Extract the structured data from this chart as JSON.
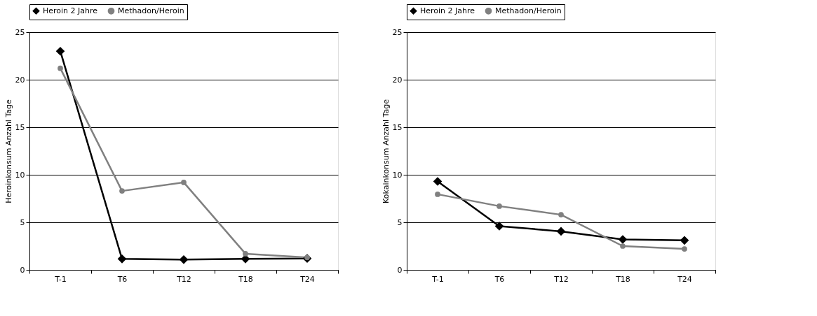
{
  "chart_data": [
    {
      "type": "line",
      "ylabel": "Heroinkonsum Anzahl Tage",
      "categories": [
        "T-1",
        "T6",
        "T12",
        "T18",
        "T24"
      ],
      "ylim": [
        0,
        25
      ],
      "yticks": [
        0,
        5,
        10,
        15,
        20,
        25
      ],
      "grid": "y",
      "legend": "top",
      "series": [
        {
          "name": "Heroin 2 Jahre",
          "color": "#000000",
          "marker": "diamond",
          "values": [
            23.0,
            1.15,
            1.08,
            1.15,
            1.2
          ]
        },
        {
          "name": "Methadon/Heroin",
          "color": "#808080",
          "marker": "circle",
          "values": [
            21.2,
            8.3,
            9.2,
            1.7,
            1.3
          ]
        }
      ]
    },
    {
      "type": "line",
      "ylabel": "Kokainkonsum Anzahl Tage",
      "categories": [
        "T-1",
        "T6",
        "T12",
        "T18",
        "T24"
      ],
      "ylim": [
        0,
        25
      ],
      "yticks": [
        0,
        5,
        10,
        15,
        20,
        25
      ],
      "grid": "y",
      "legend": "top",
      "series": [
        {
          "name": "Heroin 2 Jahre",
          "color": "#000000",
          "marker": "diamond",
          "values": [
            9.3,
            4.6,
            4.05,
            3.2,
            3.1
          ]
        },
        {
          "name": "Methadon/Heroin",
          "color": "#808080",
          "marker": "circle",
          "values": [
            7.95,
            6.7,
            5.8,
            2.5,
            2.2
          ]
        }
      ]
    }
  ]
}
